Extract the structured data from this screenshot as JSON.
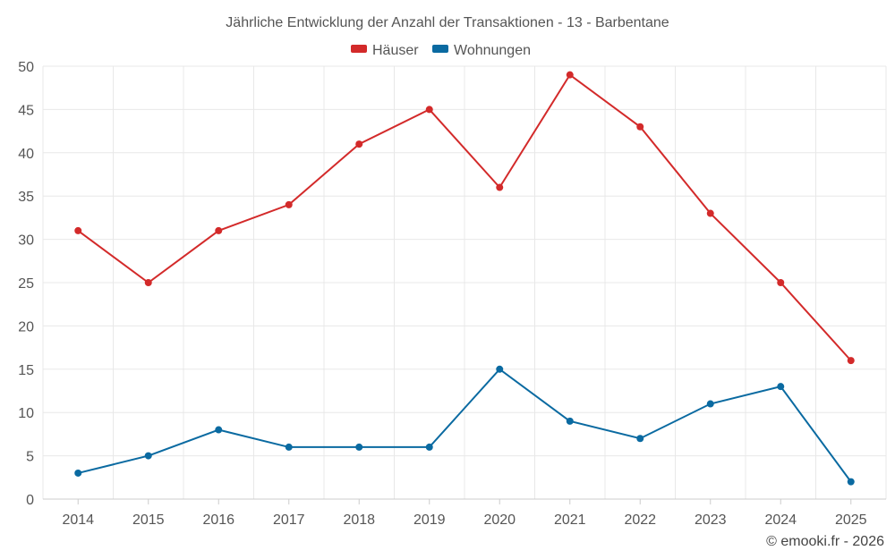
{
  "chart_data": {
    "type": "line",
    "title": "Jährliche Entwicklung der Anzahl der Transaktionen - 13 - Barbentane",
    "categories": [
      "2014",
      "2015",
      "2016",
      "2017",
      "2018",
      "2019",
      "2020",
      "2021",
      "2022",
      "2023",
      "2024",
      "2025"
    ],
    "series": [
      {
        "name": "Häuser",
        "color": "#d32a2a",
        "values": [
          31,
          25,
          31,
          34,
          41,
          45,
          36,
          49,
          43,
          33,
          25,
          16
        ]
      },
      {
        "name": "Wohnungen",
        "color": "#0a6aa1",
        "values": [
          3,
          5,
          8,
          6,
          6,
          6,
          15,
          9,
          7,
          11,
          13,
          2
        ]
      }
    ],
    "ylim": [
      0,
      50
    ],
    "yticks": [
      "0",
      "5",
      "10",
      "15",
      "20",
      "25",
      "30",
      "35",
      "40",
      "45",
      "50"
    ],
    "xlabel": "",
    "ylabel": "",
    "grid": true,
    "legend": "top-center"
  },
  "credit": "© emooki.fr - 2026"
}
